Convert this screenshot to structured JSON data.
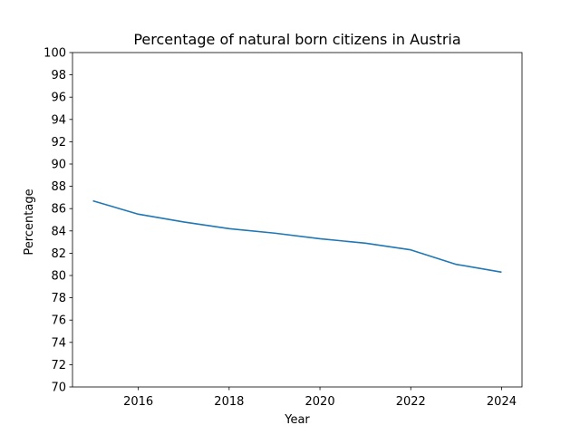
{
  "chart_data": {
    "type": "line",
    "title": "Percentage of natural born citizens in Austria",
    "xlabel": "Year",
    "ylabel": "Percentage",
    "x": [
      2015,
      2016,
      2017,
      2018,
      2019,
      2020,
      2021,
      2022,
      2023,
      2024
    ],
    "series": [
      {
        "values": [
          86.7,
          85.5,
          84.8,
          84.2,
          83.8,
          83.3,
          82.9,
          82.3,
          81.0,
          80.3
        ],
        "color": "#1f77b4"
      }
    ],
    "xlim": [
      2014.55,
      2024.45
    ],
    "ylim": [
      70,
      100
    ],
    "x_ticks": [
      "2016",
      "2018",
      "2020",
      "2022",
      "2024"
    ],
    "y_ticks": [
      "70",
      "72",
      "74",
      "76",
      "78",
      "80",
      "82",
      "84",
      "86",
      "88",
      "90",
      "92",
      "94",
      "96",
      "98",
      "100"
    ],
    "grid": false,
    "legend": "none"
  }
}
